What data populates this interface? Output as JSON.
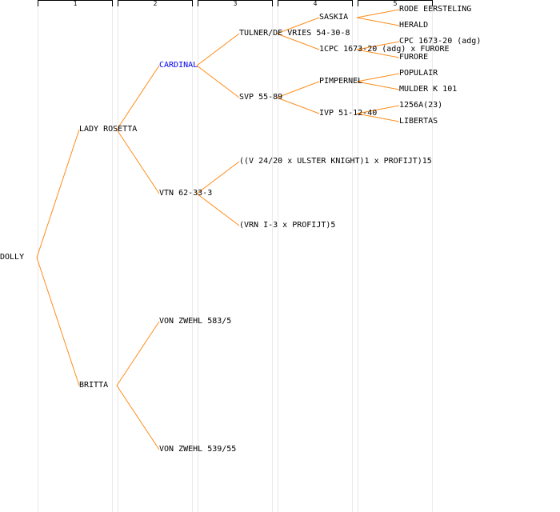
{
  "colors": {
    "link": "#ff8c1a",
    "highlight": "#0000ee",
    "text": "#000000"
  },
  "generations": [
    "1",
    "2",
    "3",
    "4",
    "5"
  ],
  "pedigree": {
    "root": "DOLLY",
    "g1": [
      "LADY ROSETTA",
      "BRITTA"
    ],
    "g2": [
      "CARDINAL",
      "VTN 62-33-3",
      "VON ZWEHL 583/5",
      "VON ZWEHL 539/55"
    ],
    "g3": [
      "TULNER/DE VRIES 54-30-8",
      "SVP 55-89",
      "((V 24/20 x ULSTER KNIGHT)1 x PROFIJT)15",
      "(VRN I-3 x PROFIJT)5"
    ],
    "g4": [
      "SASKIA",
      "1CPC 1673-20 (adg) x FURORE",
      "PIMPERNEL",
      "IVP 51-12-40"
    ],
    "g5": [
      "RODE EERSTELING",
      "HERALD",
      "CPC 1673-20 (adg)",
      "FURORE",
      "POPULAIR",
      "MULDER K 101",
      "1256A(23)",
      "LIBERTAS"
    ]
  }
}
